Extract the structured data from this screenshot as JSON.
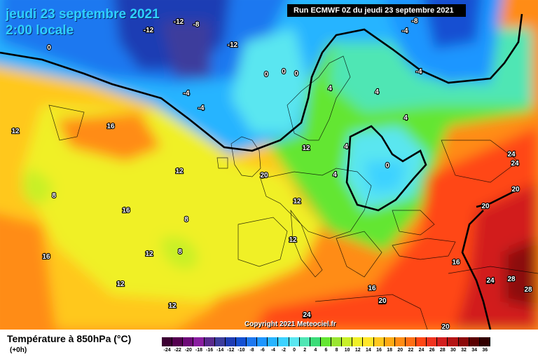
{
  "header": {
    "date_line": "jeudi 23 septembre 2021",
    "time_line": "2:00 locale",
    "run_label": "Run ECMWF 0Z du jeudi 23 septembre 2021"
  },
  "map": {
    "copyright": "Copyright 2021 Meteociel.fr",
    "contour_labels": [
      {
        "text": "-12"
      },
      {
        "text": "-8"
      },
      {
        "text": "-12"
      },
      {
        "text": "-12"
      },
      {
        "text": "-4"
      },
      {
        "text": "-4"
      },
      {
        "text": "0"
      },
      {
        "text": "0"
      },
      {
        "text": "0"
      },
      {
        "text": "0"
      },
      {
        "text": "-8"
      },
      {
        "text": "-4"
      },
      {
        "text": "-4"
      },
      {
        "text": "4"
      },
      {
        "text": "4"
      },
      {
        "text": "4"
      },
      {
        "text": "4"
      },
      {
        "text": "4"
      },
      {
        "text": "0"
      },
      {
        "text": "16"
      },
      {
        "text": "16"
      },
      {
        "text": "12"
      },
      {
        "text": "12"
      },
      {
        "text": "8"
      },
      {
        "text": "8"
      },
      {
        "text": "8"
      },
      {
        "text": "12"
      },
      {
        "text": "12"
      },
      {
        "text": "16"
      },
      {
        "text": "12"
      },
      {
        "text": "12"
      },
      {
        "text": "12"
      },
      {
        "text": "12"
      },
      {
        "text": "20"
      },
      {
        "text": "24"
      },
      {
        "text": "24"
      },
      {
        "text": "20"
      },
      {
        "text": "20"
      },
      {
        "text": "16"
      },
      {
        "text": "16"
      },
      {
        "text": "16"
      },
      {
        "text": "20"
      },
      {
        "text": "24"
      },
      {
        "text": "24"
      },
      {
        "text": "28"
      },
      {
        "text": "28"
      },
      {
        "text": "24"
      },
      {
        "text": "20"
      },
      {
        "text": "24"
      }
    ]
  },
  "legend": {
    "title": "Température à 850hPa (°C)",
    "subtitle": "(+0h)",
    "ticks": [
      "-24",
      "-22",
      "-20",
      "-18",
      "-16",
      "-14",
      "-12",
      "-10",
      "-8",
      "-6",
      "-4",
      "-2",
      "0",
      "2",
      "4",
      "6",
      "8",
      "10",
      "12",
      "14",
      "16",
      "18",
      "20",
      "22",
      "24",
      "26",
      "28",
      "30",
      "32",
      "34",
      "36"
    ],
    "colors": [
      "#3c0032",
      "#550050",
      "#6e0a78",
      "#8a1ea0",
      "#5a2a8c",
      "#3c3c9c",
      "#1e3cb4",
      "#1450d2",
      "#1e78f0",
      "#1e96ff",
      "#28b4ff",
      "#3cd2ff",
      "#5ae6f0",
      "#50e6b4",
      "#3cdc78",
      "#64e632",
      "#9ae632",
      "#c8f028",
      "#f0f028",
      "#ffe628",
      "#ffc81e",
      "#ffaa14",
      "#ff8c14",
      "#ff6e14",
      "#ff4614",
      "#f0321e",
      "#d21e1e",
      "#b41414",
      "#8c0a0a",
      "#5a0000",
      "#320000"
    ]
  }
}
